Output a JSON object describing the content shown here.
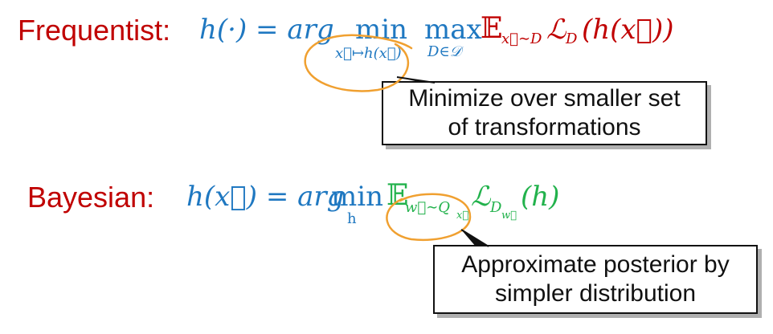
{
  "colors": {
    "red": "#c00000",
    "blue": "#1f78c1",
    "green": "#22b24c",
    "orange": "#f0a030"
  },
  "frequentist": {
    "label": "Frequentist:",
    "lhs": "h(·) = arg",
    "min_op": "min",
    "min_sub": "x⃗↦h(x⃗)",
    "max_op": "max",
    "max_sub": "D∈𝒟",
    "expect": "𝔼",
    "expect_sub": "x⃗∼D",
    "loss": "ℒ",
    "loss_sub": "D",
    "loss_arg": "(h(x⃗))",
    "callout_line1": "Minimize over smaller set",
    "callout_line2": "of transformations"
  },
  "bayesian": {
    "label": "Bayesian:",
    "lhs": "h(x⃗) = arg",
    "min_op": "min",
    "min_sub": "h",
    "expect": "𝔼",
    "expect_sub": "w⃗∼Q",
    "expect_subsub": "x⃗",
    "loss": "ℒ",
    "loss_sub": "D",
    "loss_subsub": "w⃗",
    "loss_arg": "(h)",
    "callout_line1": "Approximate posterior by",
    "callout_line2": "simpler distribution"
  }
}
